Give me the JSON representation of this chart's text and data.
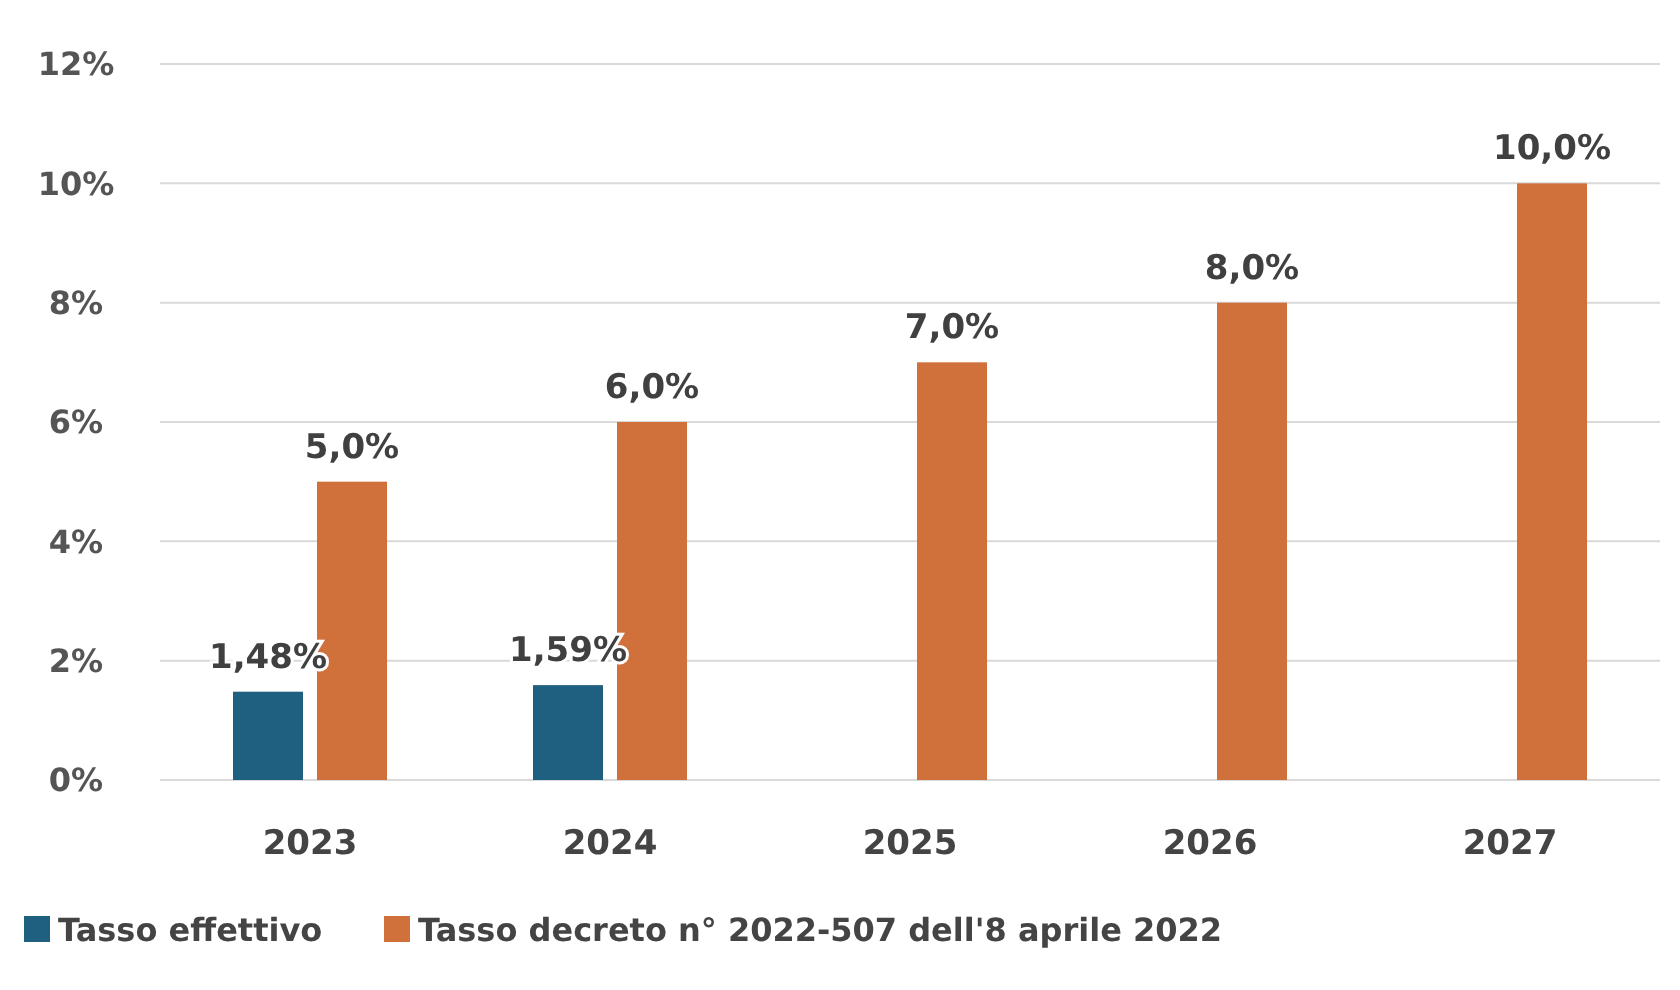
{
  "chart_data": {
    "type": "bar",
    "categories": [
      "2023",
      "2024",
      "2025",
      "2026",
      "2027"
    ],
    "series": [
      {
        "name": "Tasso effettivo",
        "color": "#1f5f7f",
        "values": [
          1.48,
          1.59,
          null,
          null,
          null
        ],
        "value_labels": [
          "1,48%",
          "1,59%",
          null,
          null,
          null
        ]
      },
      {
        "name": "Tasso decreto n° 2022-507 dell'8 aprile 2022",
        "color": "#d0703a",
        "values": [
          5,
          6,
          7,
          8,
          10
        ],
        "value_labels": [
          "5,0%",
          "6,0%",
          "7,0%",
          "8,0%",
          "10,0%"
        ]
      }
    ],
    "ylim": [
      0,
      12
    ],
    "yticks": [
      {
        "value": 0,
        "label": "0%"
      },
      {
        "value": 2,
        "label": "2%"
      },
      {
        "value": 4,
        "label": "4%"
      },
      {
        "value": 6,
        "label": "6%"
      },
      {
        "value": 8,
        "label": "8%"
      },
      {
        "value": 10,
        "label": "10%"
      },
      {
        "value": 12,
        "label": "12%"
      }
    ],
    "grid": "y",
    "legend": "bottom"
  }
}
